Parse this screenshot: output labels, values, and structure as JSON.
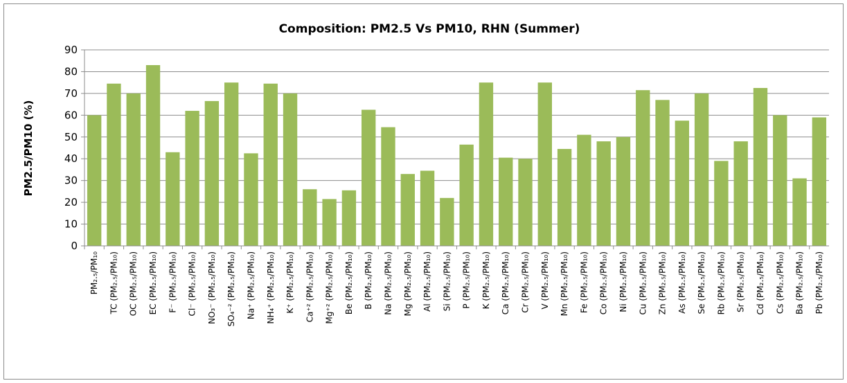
{
  "chart_data": {
    "type": "bar",
    "title": "Composition: PM2.5 Vs PM10, RHN (Summer)",
    "y_label": "PM2.5/PM10 (%)",
    "categories": [
      "PM₂.₅/PM₁₀",
      "TC (PM₂.₅/PM₁₀)",
      "OC (PM₂.₅/PM₁₀)",
      "EC (PM₂.₅/PM₁₀)",
      "F⁻ (PM₂.₅/PM₁₀)",
      "Cl⁻ (PM₂.₅/PM₁₀)",
      "NO₃⁻ (PM₂.₅/PM₁₀)",
      "SO₄⁻² (PM₂.₅/PM₁₀)",
      "Na⁺ (PM₂.₅/PM₁₀)",
      "NH₄⁺ (PM₂.₅/PM₁₀)",
      "K⁺ (PM₂.₅/PM₁₀)",
      "Ca⁺² (PM₂.₅/PM₁₀)",
      "Mg⁺² (PM₂.₅/PM₁₀)",
      "Be (PM₂.₅/PM₁₀)",
      "B (PM₂.₅/PM₁₀)",
      "Na (PM₂.₅/PM₁₀)",
      "Mg (PM₂.₅/PM₁₀)",
      "Al (PM₂.₅/PM₁₀)",
      "Si (PM₂.₅/PM₁₀)",
      "P (PM₂.₅/PM₁₀)",
      "K (PM₂.₅/PM₁₀)",
      "Ca (PM₂.₅/PM₁₀)",
      "Cr (PM₂.₅/PM₁₀)",
      "V (PM₂.₅/PM₁₀)",
      "Mn (PM₂.₅/PM₁₀)",
      "Fe (PM₂.₅/PM₁₀)",
      "Co (PM₂.₅/PM₁₀)",
      "Ni (PM₂.₅/PM₁₀)",
      "Cu (PM₂.₅/PM₁₀)",
      "Zn (PM₂.₅/PM₁₀)",
      "As (PM₂.₅/PM₁₀)",
      "Se (PM₂.₅/PM₁₀)",
      "Rb (PM₂.₅/PM₁₀)",
      "Sr (PM₂.₅/PM₁₀)",
      "Cd (PM₂.₅/PM₁₀)",
      "Cs (PM₂.₅/PM₁₀)",
      "Ba (PM₂.₅/PM₁₀)",
      "Pb (PM₂.₅/PM₁₀)"
    ],
    "values": [
      60,
      74.5,
      70,
      83,
      43,
      62,
      66.5,
      75,
      42.5,
      74.5,
      70,
      26,
      21.5,
      25.5,
      62.5,
      54.5,
      33,
      34.5,
      22,
      46.5,
      75,
      40.5,
      40,
      75,
      44.5,
      51,
      48,
      50,
      71.5,
      67,
      57.5,
      70,
      39,
      48,
      72.5,
      60,
      31,
      59
    ],
    "color": "#9bbb59",
    "ylim": [
      0,
      90
    ],
    "yticks": [
      0,
      10,
      20,
      30,
      40,
      50,
      60,
      70,
      80,
      90
    ],
    "grid": true
  }
}
